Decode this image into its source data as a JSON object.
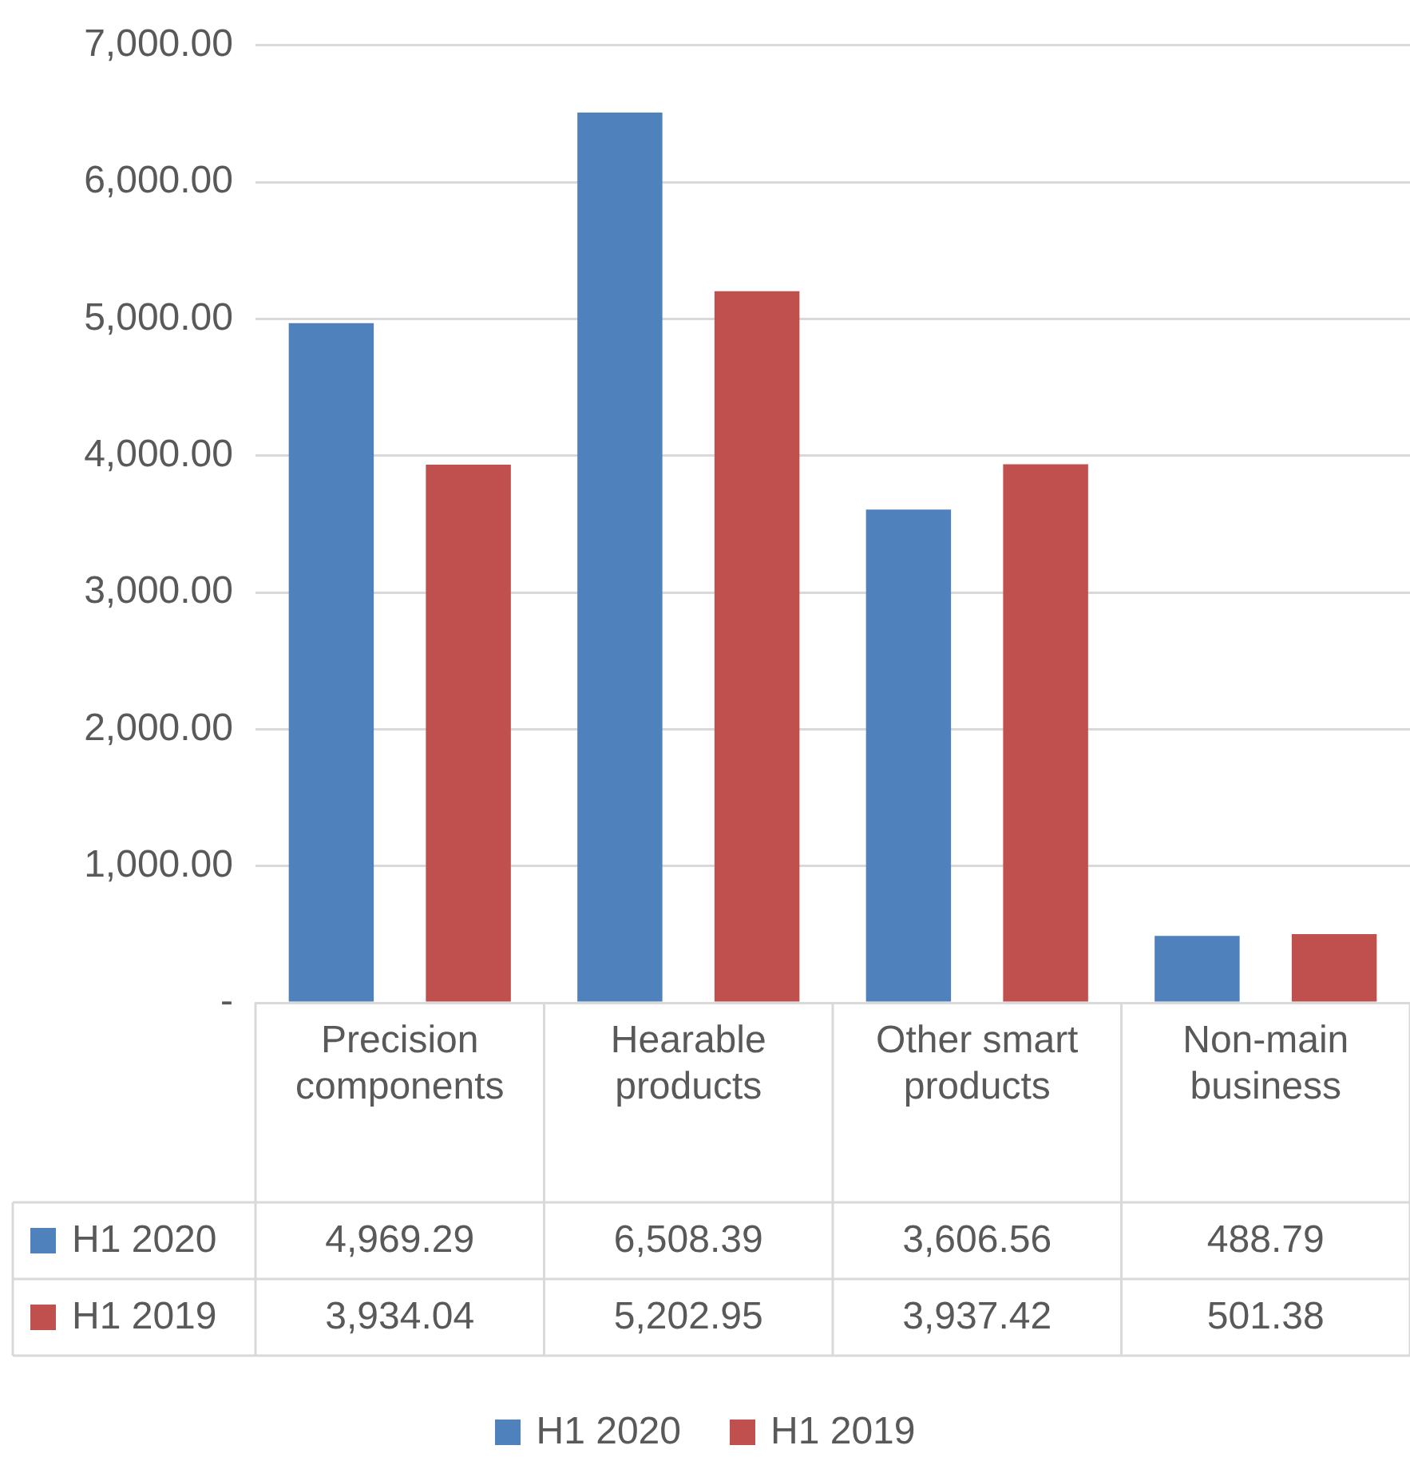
{
  "chart_data": {
    "type": "bar",
    "categories": [
      "Precision components",
      "Hearable products",
      "Other smart products",
      "Non-main business"
    ],
    "series": [
      {
        "name": "H1 2020",
        "color": "#4f81bd",
        "values": [
          4969.29,
          6508.39,
          3606.56,
          488.79
        ],
        "value_labels": [
          "4,969.29",
          "6,508.39",
          "3,606.56",
          "488.79"
        ]
      },
      {
        "name": "H1 2019",
        "color": "#c0504d",
        "values": [
          3934.04,
          5202.95,
          3937.42,
          501.38
        ],
        "value_labels": [
          "3,934.04",
          "5,202.95",
          "3,937.42",
          "501.38"
        ]
      }
    ],
    "ylim": [
      0,
      7000
    ],
    "yticks": [
      {
        "value": 0,
        "label": "-"
      },
      {
        "value": 1000,
        "label": "1,000.00"
      },
      {
        "value": 2000,
        "label": "2,000.00"
      },
      {
        "value": 3000,
        "label": "3,000.00"
      },
      {
        "value": 4000,
        "label": "4,000.00"
      },
      {
        "value": 5000,
        "label": "5,000.00"
      },
      {
        "value": 6000,
        "label": "6,000.00"
      },
      {
        "value": 7000,
        "label": "7,000.00"
      }
    ],
    "grid": "y",
    "legend": "bottom"
  }
}
